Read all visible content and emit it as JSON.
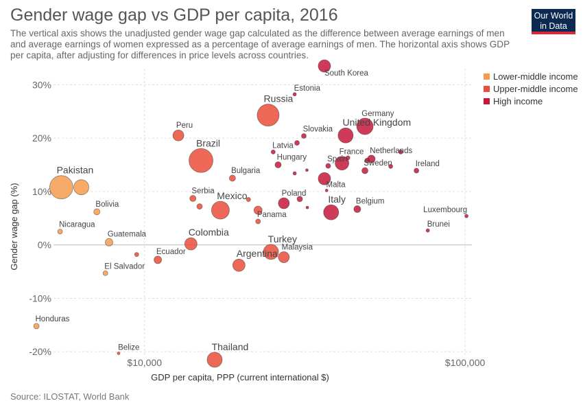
{
  "header": {
    "title": "Gender wage gap vs GDP per capita, 2016",
    "subtitle": "The vertical axis shows the unadjusted gender wage gap calculated as the difference between average earnings of men and average earnings of women expressed as a percentage of average earnings of men. The horizontal axis shows GDP per capita, after adjusting for differences in price levels across countries.",
    "logo_line1": "Our World",
    "logo_line2": "in Data"
  },
  "footer": {
    "source": "Source: ILOSTAT, World Bank"
  },
  "colors": {
    "Lower-middle income": "#f79c4f",
    "Upper-middle income": "#ea4e3a",
    "High income": "#c5173a"
  },
  "chart_data": {
    "type": "scatter",
    "xlabel": "GDP per capita, PPP (current international $)",
    "ylabel": "Gender wage gap (%)",
    "x_scale": "log",
    "xlim": [
      5200,
      105000
    ],
    "ylim": [
      -21,
      33
    ],
    "x_ticks": [
      {
        "value": 10000,
        "label": "$10,000"
      },
      {
        "value": 100000,
        "label": "$100,000"
      }
    ],
    "y_ticks": [
      {
        "value": 30,
        "label": "30%"
      },
      {
        "value": 20,
        "label": "20%"
      },
      {
        "value": 10,
        "label": "10%"
      },
      {
        "value": 0,
        "label": "0%"
      },
      {
        "value": -10,
        "label": "-10%"
      },
      {
        "value": -20,
        "label": "-20%"
      }
    ],
    "grid": true,
    "legend_position": "top-right",
    "legend": [
      "Lower-middle income",
      "Upper-middle income",
      "High income"
    ],
    "points": [
      {
        "name": "Pakistan",
        "x": 5500,
        "y": 10.8,
        "group": "Lower-middle income",
        "r": 17,
        "label": true,
        "big": true
      },
      {
        "name": "",
        "x": 6350,
        "y": 10.8,
        "group": "Lower-middle income",
        "r": 11,
        "label": false
      },
      {
        "name": "Bolivia",
        "x": 7100,
        "y": 6.2,
        "group": "Lower-middle income",
        "r": 4.5,
        "label": true
      },
      {
        "name": "Nicaragua",
        "x": 5450,
        "y": 2.5,
        "group": "Lower-middle income",
        "r": 3.5,
        "label": true
      },
      {
        "name": "Guatemala",
        "x": 7750,
        "y": 0.5,
        "group": "Lower-middle income",
        "r": 5.5,
        "label": true
      },
      {
        "name": "El Salvador",
        "x": 7550,
        "y": -5.3,
        "group": "Lower-middle income",
        "r": 3.5,
        "label": true
      },
      {
        "name": "Honduras",
        "x": 4600,
        "y": -15.2,
        "group": "Lower-middle income",
        "r": 4,
        "label": true
      },
      {
        "name": "",
        "x": 9450,
        "y": -1.8,
        "group": "Upper-middle income",
        "r": 3,
        "label": false
      },
      {
        "name": "Ecuador",
        "x": 11000,
        "y": -2.8,
        "group": "Upper-middle income",
        "r": 5.5,
        "label": true
      },
      {
        "name": "Colombia",
        "x": 13950,
        "y": 0.2,
        "group": "Upper-middle income",
        "r": 9,
        "label": true,
        "big": true
      },
      {
        "name": "Thailand",
        "x": 16550,
        "y": -21.5,
        "group": "Upper-middle income",
        "r": 11,
        "label": true,
        "big": true
      },
      {
        "name": "Peru",
        "x": 12750,
        "y": 20.5,
        "group": "Upper-middle income",
        "r": 8,
        "label": true
      },
      {
        "name": "Brazil",
        "x": 15000,
        "y": 15.8,
        "group": "Upper-middle income",
        "r": 17.5,
        "label": true,
        "big": true
      },
      {
        "name": "Serbia",
        "x": 14150,
        "y": 8.7,
        "group": "Upper-middle income",
        "r": 4.5,
        "label": true
      },
      {
        "name": "",
        "x": 14850,
        "y": 7.2,
        "group": "Upper-middle income",
        "r": 4,
        "label": false
      },
      {
        "name": "Mexico",
        "x": 17250,
        "y": 6.5,
        "group": "Upper-middle income",
        "r": 13,
        "label": true,
        "big": true
      },
      {
        "name": "Bulgaria",
        "x": 18800,
        "y": 12.5,
        "group": "Upper-middle income",
        "r": 4.5,
        "label": true
      },
      {
        "name": "",
        "x": 21100,
        "y": 8.5,
        "group": "Upper-middle income",
        "r": 3,
        "label": false
      },
      {
        "name": "",
        "x": 22600,
        "y": 6.5,
        "group": "Upper-middle income",
        "r": 6,
        "label": false
      },
      {
        "name": "Panama",
        "x": 22600,
        "y": 4.4,
        "group": "Upper-middle income",
        "r": 3.5,
        "label": true
      },
      {
        "name": "Argentina",
        "x": 19700,
        "y": -3.8,
        "group": "Upper-middle income",
        "r": 9,
        "label": true,
        "big": true
      },
      {
        "name": "Turkey",
        "x": 24800,
        "y": -1.3,
        "group": "Upper-middle income",
        "r": 11,
        "label": true,
        "big": true
      },
      {
        "name": "Malaysia",
        "x": 27200,
        "y": -2.3,
        "group": "Upper-middle income",
        "r": 8,
        "label": true
      },
      {
        "name": "Russia",
        "x": 24300,
        "y": 24.3,
        "group": "Upper-middle income",
        "r": 16,
        "label": true,
        "big": true
      },
      {
        "name": "South Korea",
        "x": 36400,
        "y": 33.5,
        "group": "High income",
        "r": 9,
        "label": true
      },
      {
        "name": "Estonia",
        "x": 29400,
        "y": 28.2,
        "group": "High income",
        "r": 2.5,
        "label": true
      },
      {
        "name": "Germany",
        "x": 48700,
        "y": 22.2,
        "group": "High income",
        "r": 12,
        "label": true
      },
      {
        "name": "United Kingdom",
        "x": 42400,
        "y": 20.5,
        "group": "High income",
        "r": 11,
        "label": true,
        "big": true
      },
      {
        "name": "Slovakia",
        "x": 31400,
        "y": 20.4,
        "group": "High income",
        "r": 3.5,
        "label": true
      },
      {
        "name": "",
        "x": 29900,
        "y": 19.1,
        "group": "High income",
        "r": 3.5,
        "label": false
      },
      {
        "name": "Latvia",
        "x": 25200,
        "y": 17.4,
        "group": "High income",
        "r": 3,
        "label": true
      },
      {
        "name": "Hungary",
        "x": 26100,
        "y": 15,
        "group": "High income",
        "r": 4.5,
        "label": true
      },
      {
        "name": "France",
        "x": 41300,
        "y": 15.3,
        "group": "High income",
        "r": 10,
        "label": true
      },
      {
        "name": "Netherlands",
        "x": 51000,
        "y": 16.1,
        "group": "High income",
        "r": 5.5,
        "label": true
      },
      {
        "name": "",
        "x": 49500,
        "y": 15.8,
        "group": "High income",
        "r": 3.5,
        "label": false
      },
      {
        "name": "",
        "x": 43100,
        "y": 16.3,
        "group": "High income",
        "r": 3,
        "label": false
      },
      {
        "name": "",
        "x": 63000,
        "y": 17.4,
        "group": "High income",
        "r": 3,
        "label": false
      },
      {
        "name": "Spain",
        "x": 37400,
        "y": 14.8,
        "group": "High income",
        "r": 3.5,
        "label": true
      },
      {
        "name": "Sweden",
        "x": 48700,
        "y": 13.9,
        "group": "High income",
        "r": 4.5,
        "label": true
      },
      {
        "name": "",
        "x": 58600,
        "y": 14.7,
        "group": "High income",
        "r": 3,
        "label": false
      },
      {
        "name": "Ireland",
        "x": 70500,
        "y": 13.9,
        "group": "High income",
        "r": 3.5,
        "label": true
      },
      {
        "name": "",
        "x": 29400,
        "y": 13.4,
        "group": "High income",
        "r": 2.5,
        "label": false
      },
      {
        "name": "",
        "x": 32100,
        "y": 14,
        "group": "High income",
        "r": 2,
        "label": false
      },
      {
        "name": "",
        "x": 36400,
        "y": 12.4,
        "group": "High income",
        "r": 9,
        "label": false
      },
      {
        "name": "Malta",
        "x": 37000,
        "y": 10.2,
        "group": "High income",
        "r": 2,
        "label": true
      },
      {
        "name": "Poland",
        "x": 27200,
        "y": 7.8,
        "group": "High income",
        "r": 8,
        "label": true
      },
      {
        "name": "",
        "x": 30500,
        "y": 8.6,
        "group": "High income",
        "r": 4,
        "label": false
      },
      {
        "name": "",
        "x": 32200,
        "y": 7,
        "group": "High income",
        "r": 2,
        "label": false
      },
      {
        "name": "Italy",
        "x": 38200,
        "y": 6.1,
        "group": "High income",
        "r": 11,
        "label": true,
        "big": true
      },
      {
        "name": "Belgium",
        "x": 46100,
        "y": 6.7,
        "group": "High income",
        "r": 5,
        "label": true
      },
      {
        "name": "Luxembourg",
        "x": 101000,
        "y": 5.4,
        "group": "High income",
        "r": 2.5,
        "label": true
      },
      {
        "name": "Brunei",
        "x": 76500,
        "y": 2.7,
        "group": "High income",
        "r": 2.5,
        "label": true
      },
      {
        "name": "Belize",
        "x": 8300,
        "y": -20.3,
        "group": "Upper-middle income",
        "r": 2,
        "label": true
      }
    ],
    "label_offsets_note": ""
  }
}
